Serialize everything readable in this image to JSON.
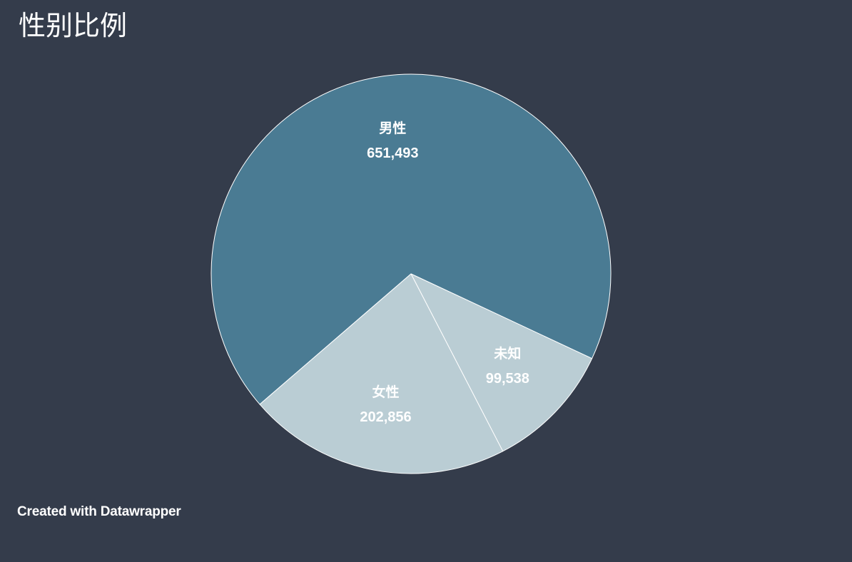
{
  "title": "性别比例",
  "footer": "Created with Datawrapper",
  "chart_data": {
    "type": "pie",
    "title": "性别比例",
    "categories": [
      "男性",
      "未知",
      "女性"
    ],
    "values": [
      651493,
      99538,
      202856
    ],
    "value_labels": [
      "651,493",
      "99,538",
      "202,856"
    ],
    "colors": [
      "#4a7b93",
      "#bacdd4",
      "#bacdd4"
    ],
    "slice_border_color": "#ffffff",
    "label_color": "#ffffff"
  }
}
